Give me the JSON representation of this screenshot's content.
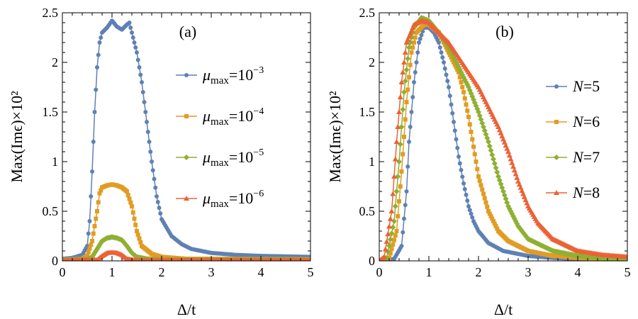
{
  "chart_data": [
    {
      "type": "line",
      "panel_label": "(a)",
      "xlabel": "Δ/t",
      "ylabel": "Max(Imϵ)×10²",
      "xlim": [
        0,
        5
      ],
      "ylim": [
        0,
        2.5
      ],
      "xticks": [
        "0",
        "1",
        "2",
        "3",
        "4",
        "5"
      ],
      "yticks": [
        "0",
        "0.5",
        "1",
        "1.5",
        "2",
        "2.5"
      ],
      "legend_position": "right",
      "series": [
        {
          "name": "μmax=10⁻³",
          "legend": {
            "symbol": "μ",
            "sub": "max",
            "eq": "=10",
            "sup": "−3"
          },
          "color": "#5E81B5",
          "marker": "circle",
          "points": [
            [
              0,
              0.02
            ],
            [
              0.2,
              0.03
            ],
            [
              0.4,
              0.06
            ],
            [
              0.5,
              0.15
            ],
            [
              0.55,
              0.4
            ],
            [
              0.6,
              0.9
            ],
            [
              0.65,
              1.5
            ],
            [
              0.7,
              1.95
            ],
            [
              0.75,
              2.2
            ],
            [
              0.8,
              2.3
            ],
            [
              0.9,
              2.35
            ],
            [
              1.0,
              2.42
            ],
            [
              1.1,
              2.36
            ],
            [
              1.2,
              2.33
            ],
            [
              1.3,
              2.38
            ],
            [
              1.35,
              2.4
            ],
            [
              1.4,
              2.3
            ],
            [
              1.5,
              2.1
            ],
            [
              1.6,
              1.8
            ],
            [
              1.7,
              1.4
            ],
            [
              1.8,
              1.0
            ],
            [
              1.9,
              0.65
            ],
            [
              2.0,
              0.42
            ],
            [
              2.2,
              0.25
            ],
            [
              2.4,
              0.17
            ],
            [
              2.6,
              0.12
            ],
            [
              3.0,
              0.08
            ],
            [
              3.5,
              0.06
            ],
            [
              4.0,
              0.05
            ],
            [
              5.0,
              0.04
            ]
          ]
        },
        {
          "name": "μmax=10⁻⁴",
          "legend": {
            "symbol": "μ",
            "sub": "max",
            "eq": "=10",
            "sup": "−4"
          },
          "color": "#E19C24",
          "marker": "square",
          "points": [
            [
              0,
              0.01
            ],
            [
              0.4,
              0.02
            ],
            [
              0.5,
              0.05
            ],
            [
              0.6,
              0.2
            ],
            [
              0.7,
              0.5
            ],
            [
              0.75,
              0.68
            ],
            [
              0.8,
              0.74
            ],
            [
              0.9,
              0.76
            ],
            [
              1.0,
              0.77
            ],
            [
              1.1,
              0.76
            ],
            [
              1.2,
              0.74
            ],
            [
              1.3,
              0.7
            ],
            [
              1.4,
              0.55
            ],
            [
              1.5,
              0.3
            ],
            [
              1.6,
              0.15
            ],
            [
              1.8,
              0.07
            ],
            [
              2.0,
              0.04
            ],
            [
              2.5,
              0.02
            ],
            [
              3.0,
              0.02
            ],
            [
              5.0,
              0.015
            ]
          ]
        },
        {
          "name": "μmax=10⁻⁵",
          "legend": {
            "symbol": "μ",
            "sub": "max",
            "eq": "=10",
            "sup": "−5"
          },
          "color": "#8FB032",
          "marker": "diamond",
          "points": [
            [
              0,
              0.01
            ],
            [
              0.5,
              0.015
            ],
            [
              0.6,
              0.04
            ],
            [
              0.7,
              0.12
            ],
            [
              0.8,
              0.2
            ],
            [
              0.9,
              0.23
            ],
            [
              1.0,
              0.24
            ],
            [
              1.1,
              0.23
            ],
            [
              1.2,
              0.21
            ],
            [
              1.3,
              0.15
            ],
            [
              1.4,
              0.08
            ],
            [
              1.5,
              0.04
            ],
            [
              1.7,
              0.02
            ],
            [
              2.0,
              0.01
            ],
            [
              5.0,
              0.01
            ]
          ]
        },
        {
          "name": "μmax=10⁻⁶",
          "legend": {
            "symbol": "μ",
            "sub": "max",
            "eq": "=10",
            "sup": "−6"
          },
          "color": "#EB6235",
          "marker": "triangle",
          "points": [
            [
              0,
              0.005
            ],
            [
              0.7,
              0.01
            ],
            [
              0.8,
              0.05
            ],
            [
              0.9,
              0.08
            ],
            [
              1.0,
              0.085
            ],
            [
              1.1,
              0.08
            ],
            [
              1.2,
              0.06
            ],
            [
              1.3,
              0.02
            ],
            [
              1.5,
              0.005
            ],
            [
              5.0,
              0.005
            ]
          ]
        }
      ]
    },
    {
      "type": "line",
      "panel_label": "(b)",
      "xlabel": "Δ/t",
      "ylabel": "Max(Imϵ)×10²",
      "xlim": [
        0,
        5
      ],
      "ylim": [
        0,
        2.5
      ],
      "xticks": [
        "0",
        "1",
        "2",
        "3",
        "4",
        "5"
      ],
      "yticks": [
        "0",
        "0.5",
        "1",
        "1.5",
        "2",
        "2.5"
      ],
      "legend_position": "right",
      "series": [
        {
          "name": "N=5",
          "legend": {
            "symbol": "N",
            "sub": "",
            "eq": "=5",
            "sup": ""
          },
          "color": "#5E81B5",
          "marker": "circle",
          "points": [
            [
              0,
              0
            ],
            [
              0.3,
              0.02
            ],
            [
              0.45,
              0.15
            ],
            [
              0.55,
              0.7
            ],
            [
              0.6,
              1.2
            ],
            [
              0.7,
              1.8
            ],
            [
              0.8,
              2.2
            ],
            [
              0.9,
              2.35
            ],
            [
              1.0,
              2.35
            ],
            [
              1.1,
              2.3
            ],
            [
              1.2,
              2.2
            ],
            [
              1.3,
              2.0
            ],
            [
              1.4,
              1.75
            ],
            [
              1.5,
              1.4
            ],
            [
              1.6,
              1.05
            ],
            [
              1.7,
              0.78
            ],
            [
              1.8,
              0.55
            ],
            [
              1.9,
              0.4
            ],
            [
              2.0,
              0.3
            ],
            [
              2.2,
              0.18
            ],
            [
              2.5,
              0.1
            ],
            [
              3.0,
              0.05
            ],
            [
              3.5,
              0.03
            ],
            [
              4.0,
              0.02
            ],
            [
              5.0,
              0.01
            ]
          ]
        },
        {
          "name": "N=6",
          "legend": {
            "symbol": "N",
            "sub": "",
            "eq": "=6",
            "sup": ""
          },
          "color": "#E19C24",
          "marker": "square",
          "points": [
            [
              0,
              0
            ],
            [
              0.2,
              0.03
            ],
            [
              0.35,
              0.3
            ],
            [
              0.45,
              0.9
            ],
            [
              0.55,
              1.6
            ],
            [
              0.65,
              2.1
            ],
            [
              0.75,
              2.3
            ],
            [
              0.9,
              2.38
            ],
            [
              1.0,
              2.38
            ],
            [
              1.2,
              2.3
            ],
            [
              1.4,
              2.1
            ],
            [
              1.6,
              1.9
            ],
            [
              1.7,
              1.7
            ],
            [
              1.8,
              1.45
            ],
            [
              1.9,
              1.15
            ],
            [
              2.0,
              0.85
            ],
            [
              2.2,
              0.5
            ],
            [
              2.4,
              0.3
            ],
            [
              2.6,
              0.2
            ],
            [
              3.0,
              0.1
            ],
            [
              3.5,
              0.05
            ],
            [
              4.0,
              0.03
            ],
            [
              5.0,
              0.015
            ]
          ]
        },
        {
          "name": "N=7",
          "legend": {
            "symbol": "N",
            "sub": "",
            "eq": "=7",
            "sup": ""
          },
          "color": "#8FB032",
          "marker": "diamond",
          "points": [
            [
              0,
              0
            ],
            [
              0.15,
              0.03
            ],
            [
              0.3,
              0.4
            ],
            [
              0.4,
              1.0
            ],
            [
              0.5,
              1.7
            ],
            [
              0.6,
              2.15
            ],
            [
              0.7,
              2.35
            ],
            [
              0.85,
              2.45
            ],
            [
              1.0,
              2.42
            ],
            [
              1.2,
              2.3
            ],
            [
              1.4,
              2.15
            ],
            [
              1.6,
              1.95
            ],
            [
              1.8,
              1.75
            ],
            [
              2.0,
              1.5
            ],
            [
              2.2,
              1.2
            ],
            [
              2.4,
              0.85
            ],
            [
              2.6,
              0.55
            ],
            [
              2.8,
              0.35
            ],
            [
              3.0,
              0.22
            ],
            [
              3.5,
              0.1
            ],
            [
              4.0,
              0.05
            ],
            [
              4.5,
              0.03
            ],
            [
              5.0,
              0.02
            ]
          ]
        },
        {
          "name": "N=8",
          "legend": {
            "symbol": "N",
            "sub": "",
            "eq": "=8",
            "sup": ""
          },
          "color": "#EB6235",
          "marker": "triangle",
          "points": [
            [
              0,
              0
            ],
            [
              0.1,
              0.04
            ],
            [
              0.25,
              0.5
            ],
            [
              0.35,
              1.2
            ],
            [
              0.45,
              1.8
            ],
            [
              0.55,
              2.2
            ],
            [
              0.7,
              2.38
            ],
            [
              0.85,
              2.42
            ],
            [
              1.0,
              2.4
            ],
            [
              1.2,
              2.3
            ],
            [
              1.4,
              2.2
            ],
            [
              1.6,
              2.05
            ],
            [
              1.8,
              1.9
            ],
            [
              2.0,
              1.75
            ],
            [
              2.2,
              1.55
            ],
            [
              2.4,
              1.35
            ],
            [
              2.6,
              1.1
            ],
            [
              2.8,
              0.8
            ],
            [
              3.0,
              0.55
            ],
            [
              3.2,
              0.38
            ],
            [
              3.5,
              0.22
            ],
            [
              4.0,
              0.1
            ],
            [
              4.5,
              0.06
            ],
            [
              5.0,
              0.04
            ]
          ]
        }
      ]
    }
  ]
}
